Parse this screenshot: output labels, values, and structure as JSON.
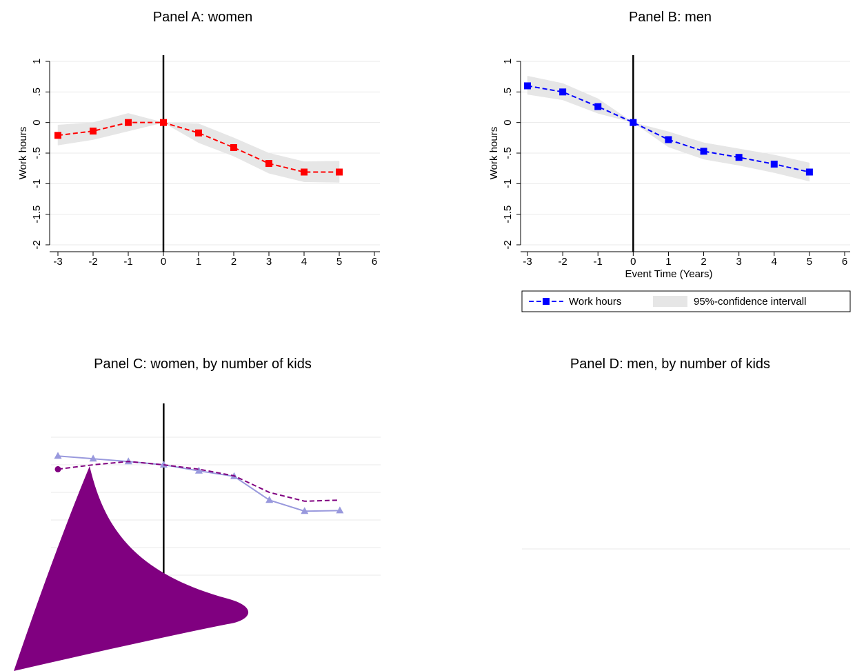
{
  "chart_data": [
    {
      "type": "line",
      "title": "Panel A: women",
      "ylabel": "Work hours",
      "x": [
        -3,
        -2,
        -1,
        0,
        1,
        2,
        3,
        4,
        5
      ],
      "xlim": [
        -3,
        6
      ],
      "xticks": [
        -3,
        -2,
        -1,
        0,
        1,
        2,
        3,
        4,
        5,
        6
      ],
      "ylim": [
        -2,
        1
      ],
      "yticks": [
        -2,
        {
          "value": -1.5,
          "label": "-1.5"
        },
        -1,
        {
          "value": -0.5,
          "label": "-.5"
        },
        0,
        {
          "value": 0.5,
          "label": ".5"
        },
        1
      ],
      "grid": true,
      "vline": 0,
      "band": {
        "color": "#e6e6e6",
        "lower": [
          -0.37,
          -0.28,
          -0.14,
          0,
          -0.33,
          -0.55,
          -0.83,
          -0.97,
          -0.98
        ],
        "upper": [
          -0.04,
          0,
          0.15,
          0,
          -0.02,
          -0.25,
          -0.5,
          -0.64,
          -0.63
        ]
      },
      "series": [
        {
          "color": "#ff0000",
          "marker": "square",
          "dash": true,
          "values": [
            -0.21,
            -0.14,
            0,
            0,
            -0.17,
            -0.41,
            -0.67,
            -0.81,
            -0.81
          ]
        }
      ]
    },
    {
      "type": "line",
      "title": "Panel B: men",
      "ylabel": "Work hours",
      "xlabel": "Event Time (Years)",
      "x": [
        -3,
        -2,
        -1,
        0,
        1,
        2,
        3,
        4,
        5
      ],
      "xlim": [
        -3,
        6
      ],
      "xticks": [
        -3,
        -2,
        -1,
        0,
        1,
        2,
        3,
        4,
        5,
        6
      ],
      "ylim": [
        -2,
        1
      ],
      "yticks": [
        -2,
        {
          "value": -1.5,
          "label": "-1.5"
        },
        -1,
        {
          "value": -0.5,
          "label": "-.5"
        },
        0,
        {
          "value": 0.5,
          "label": ".5"
        },
        1
      ],
      "grid": true,
      "vline": 0,
      "legend": "bottom",
      "band": {
        "name": "95%-confidence intervall",
        "color": "#e6e6e6",
        "lower": [
          0.46,
          0.37,
          0.15,
          0,
          -0.4,
          -0.6,
          -0.7,
          -0.82,
          -0.96
        ],
        "upper": [
          0.76,
          0.64,
          0.39,
          0,
          -0.15,
          -0.33,
          -0.43,
          -0.53,
          -0.66
        ]
      },
      "series": [
        {
          "name": "Work hours",
          "color": "#0000ff",
          "marker": "square",
          "dash": true,
          "values": [
            0.6,
            0.5,
            0.26,
            0,
            -0.28,
            -0.47,
            -0.57,
            -0.68,
            -0.81
          ]
        }
      ]
    },
    {
      "type": "line",
      "title": "Panel C: women, by number of kids",
      "x": [
        -3,
        -2,
        -1,
        0,
        1,
        2,
        3,
        4,
        5
      ],
      "xlim": [
        -3,
        6
      ],
      "ylim": [
        -2,
        1
      ],
      "yticks": [
        -2,
        -1.5,
        -1,
        -0.5,
        0,
        0.5
      ],
      "tick_labels": false,
      "axes": false,
      "grid": true,
      "vline": 0,
      "series": [
        {
          "color": "#9999dd",
          "marker": "triangle",
          "dash": false,
          "values": [
            0.16,
            0.11,
            0.06,
            0,
            -0.11,
            -0.21,
            -0.64,
            -0.84,
            -0.83
          ]
        },
        {
          "color": "#800080",
          "marker": "circle",
          "marker_first_only": true,
          "dash": true,
          "values": [
            -0.08,
            0,
            0.06,
            0,
            -0.08,
            -0.2,
            -0.5,
            -0.66,
            -0.64
          ]
        }
      ]
    },
    {
      "type": "empty",
      "title": "Panel D: men, by number of kids"
    }
  ]
}
